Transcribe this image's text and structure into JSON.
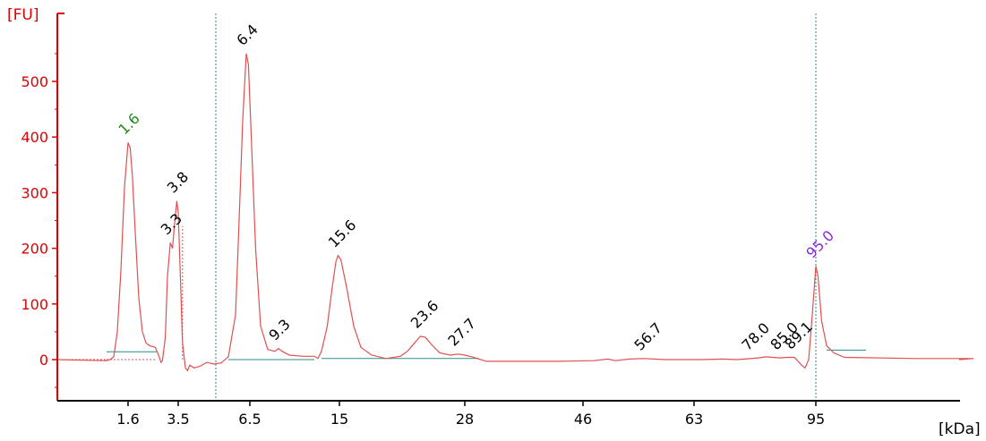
{
  "chart_data": {
    "type": "line",
    "ylabel": "[FU]",
    "xlabel": "[kDa]",
    "ylim": [
      -70,
      610
    ],
    "yticks": [
      0,
      100,
      200,
      300,
      400,
      500
    ],
    "xticks": [
      {
        "label": "1.6",
        "t": 0.0
      },
      {
        "label": "3.5",
        "t": 0.7
      },
      {
        "label": "6.5",
        "t": 1.7
      },
      {
        "label": "15",
        "t": 2.95
      },
      {
        "label": "28",
        "t": 4.7
      },
      {
        "label": "46",
        "t": 6.35
      },
      {
        "label": "63",
        "t": 7.9
      },
      {
        "label": "95",
        "t": 9.6
      }
    ],
    "trace_color": "#e05050",
    "baseline_color": "#2a8a8a",
    "axis_color": "#e00000",
    "marker_color": "#2a8a8a",
    "series": [
      {
        "points": [
          [
            -0.3,
            -2
          ],
          [
            -0.25,
            0
          ],
          [
            -0.2,
            5
          ],
          [
            -0.15,
            50
          ],
          [
            -0.1,
            160
          ],
          [
            -0.05,
            310
          ],
          [
            0.0,
            390
          ],
          [
            0.03,
            380
          ],
          [
            0.06,
            330
          ],
          [
            0.1,
            230
          ],
          [
            0.15,
            110
          ],
          [
            0.2,
            50
          ],
          [
            0.25,
            30
          ],
          [
            0.3,
            25
          ],
          [
            0.38,
            22
          ],
          [
            0.42,
            10
          ],
          [
            0.46,
            -5
          ],
          [
            0.48,
            -2
          ],
          [
            0.52,
            40
          ],
          [
            0.55,
            150
          ],
          [
            0.59,
            210
          ],
          [
            0.62,
            200
          ],
          [
            0.65,
            245
          ],
          [
            0.68,
            285
          ],
          [
            0.7,
            265
          ],
          [
            0.73,
            150
          ],
          [
            0.76,
            30
          ],
          [
            0.8,
            -15
          ],
          [
            0.83,
            -20
          ],
          [
            0.86,
            -10
          ],
          [
            0.92,
            -15
          ],
          [
            1.0,
            -12
          ],
          [
            1.1,
            -5
          ],
          [
            1.2,
            -8
          ],
          [
            1.3,
            -6
          ],
          [
            1.4,
            5
          ],
          [
            1.5,
            80
          ],
          [
            1.55,
            250
          ],
          [
            1.6,
            430
          ],
          [
            1.65,
            550
          ],
          [
            1.68,
            530
          ],
          [
            1.72,
            400
          ],
          [
            1.78,
            200
          ],
          [
            1.85,
            60
          ],
          [
            1.95,
            18
          ],
          [
            2.05,
            15
          ],
          [
            2.1,
            20
          ],
          [
            2.15,
            15
          ],
          [
            2.25,
            8
          ],
          [
            2.45,
            6
          ],
          [
            2.6,
            6
          ],
          [
            2.65,
            2
          ],
          [
            2.7,
            15
          ],
          [
            2.78,
            60
          ],
          [
            2.85,
            130
          ],
          [
            2.9,
            175
          ],
          [
            2.93,
            187
          ],
          [
            2.97,
            180
          ],
          [
            3.05,
            130
          ],
          [
            3.15,
            60
          ],
          [
            3.25,
            22
          ],
          [
            3.4,
            8
          ],
          [
            3.6,
            2
          ],
          [
            3.8,
            6
          ],
          [
            3.9,
            15
          ],
          [
            4.0,
            30
          ],
          [
            4.08,
            42
          ],
          [
            4.15,
            40
          ],
          [
            4.25,
            25
          ],
          [
            4.35,
            12
          ],
          [
            4.5,
            8
          ],
          [
            4.6,
            10
          ],
          [
            4.7,
            8
          ],
          [
            4.8,
            5
          ],
          [
            4.9,
            1
          ],
          [
            5.0,
            -3
          ],
          [
            5.5,
            -3
          ],
          [
            6.0,
            -3
          ],
          [
            6.5,
            -2
          ],
          [
            6.7,
            1
          ],
          [
            6.8,
            -2
          ],
          [
            7.0,
            1
          ],
          [
            7.2,
            2
          ],
          [
            7.5,
            0
          ],
          [
            8.0,
            0
          ],
          [
            8.3,
            1
          ],
          [
            8.5,
            0
          ],
          [
            8.8,
            3
          ],
          [
            8.9,
            5
          ],
          [
            9.0,
            4
          ],
          [
            9.1,
            3
          ],
          [
            9.2,
            4
          ],
          [
            9.3,
            4
          ],
          [
            9.4,
            -10
          ],
          [
            9.45,
            -15
          ],
          [
            9.5,
            0
          ],
          [
            9.55,
            80
          ],
          [
            9.6,
            168
          ],
          [
            9.63,
            150
          ],
          [
            9.68,
            70
          ],
          [
            9.75,
            25
          ],
          [
            9.85,
            12
          ],
          [
            10.0,
            4
          ],
          [
            11.0,
            2
          ],
          [
            11.8,
            2
          ]
        ]
      }
    ],
    "peaks": [
      {
        "label": "1.6",
        "t": 0.0,
        "y": 390,
        "color": "#1a8a1a"
      },
      {
        "label": "3.3",
        "t": 0.59,
        "y": 210,
        "color": "#000000"
      },
      {
        "label": "3.8",
        "t": 0.68,
        "y": 285,
        "color": "#000000"
      },
      {
        "label": "6.4",
        "t": 1.65,
        "y": 550,
        "color": "#000000"
      },
      {
        "label": "9.3",
        "t": 2.1,
        "y": 20,
        "color": "#000000"
      },
      {
        "label": "15.6",
        "t": 2.93,
        "y": 187,
        "color": "#000000"
      },
      {
        "label": "23.6",
        "t": 4.08,
        "y": 42,
        "color": "#000000"
      },
      {
        "label": "27.7",
        "t": 4.6,
        "y": 10,
        "color": "#000000"
      },
      {
        "label": "56.7",
        "t": 7.2,
        "y": 2,
        "color": "#000000"
      },
      {
        "label": "78.0",
        "t": 8.7,
        "y": 2,
        "color": "#000000"
      },
      {
        "label": "85.0",
        "t": 9.1,
        "y": 3,
        "color": "#000000"
      },
      {
        "label": "89.1",
        "t": 9.3,
        "y": 4,
        "color": "#000000"
      },
      {
        "label": "95.0",
        "t": 9.6,
        "y": 168,
        "color": "#8a2be2"
      }
    ]
  }
}
